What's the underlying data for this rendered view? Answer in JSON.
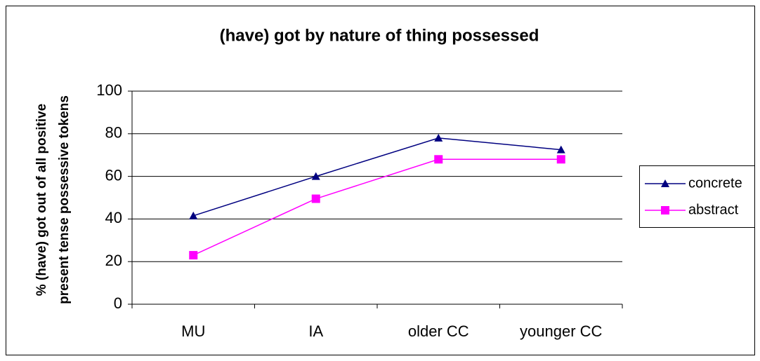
{
  "chart_data": {
    "type": "line",
    "title": "(have) got by nature of thing possessed",
    "y_label": [
      "% (have) got out of all positive",
      "present tense possessive tokens"
    ],
    "categories": [
      "MU",
      "IA",
      "older CC",
      "younger CC"
    ],
    "series": [
      {
        "name": "concrete",
        "color": "#000080",
        "marker": "triangle",
        "values": [
          41.5,
          60,
          78,
          72.5
        ]
      },
      {
        "name": "abstract",
        "color": "#ff00ff",
        "marker": "square",
        "values": [
          23,
          49.5,
          68,
          68
        ]
      }
    ],
    "ylim": [
      0,
      100
    ],
    "yticks": [
      0,
      20,
      40,
      60,
      80,
      100
    ],
    "grid": true,
    "legend": "right"
  }
}
